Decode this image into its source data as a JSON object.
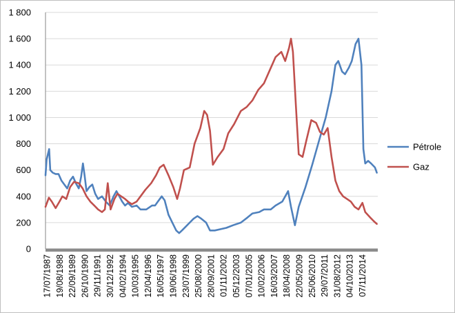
{
  "chart_data": {
    "type": "line",
    "title": "",
    "xlabel": "",
    "ylabel": "",
    "ylim": [
      0,
      1800
    ],
    "yticks": [
      0,
      200,
      400,
      600,
      800,
      1000,
      1200,
      1400,
      1600,
      1800
    ],
    "ytick_labels": [
      "0",
      "200",
      "400",
      "600",
      "800",
      "1 000",
      "1 200",
      "1 400",
      "1 600",
      "1 800"
    ],
    "xlim": [
      "17/07/1987",
      "31/03/2016"
    ],
    "xtick_labels": [
      "17/07/1987",
      "19/08/1988",
      "22/09/1989",
      "26/10/1990",
      "29/11/1991",
      "30/12/1992",
      "04/02/1994",
      "10/03/1995",
      "12/04/1996",
      "16/05/1997",
      "19/06/1998",
      "23/07/1999",
      "25/08/2000",
      "28/09/2001",
      "01/11/2002",
      "05/12/2003",
      "07/01/2005",
      "10/02/2006",
      "16/03/2007",
      "18/04/2008",
      "22/05/2009",
      "25/06/2010",
      "29/07/2011",
      "31/08/2012",
      "04/10/2013",
      "07/11/2014"
    ],
    "grid": "horizontal",
    "legend_position": "right",
    "series": [
      {
        "name": "Pétrole",
        "color": "#4f81bd",
        "points": [
          [
            "1987-07-17",
            560
          ],
          [
            "1987-08-20",
            680
          ],
          [
            "1987-10-10",
            730
          ],
          [
            "1987-11-10",
            760
          ],
          [
            "1987-12-15",
            600
          ],
          [
            "1988-03-01",
            580
          ],
          [
            "1988-06-01",
            570
          ],
          [
            "1988-09-01",
            570
          ],
          [
            "1988-12-01",
            520
          ],
          [
            "1989-03-01",
            490
          ],
          [
            "1989-06-01",
            460
          ],
          [
            "1989-09-01",
            520
          ],
          [
            "1989-12-01",
            550
          ],
          [
            "1990-03-01",
            500
          ],
          [
            "1990-06-01",
            460
          ],
          [
            "1990-08-15",
            550
          ],
          [
            "1990-10-10",
            650
          ],
          [
            "1990-12-01",
            560
          ],
          [
            "1991-02-01",
            440
          ],
          [
            "1991-05-01",
            470
          ],
          [
            "1991-08-01",
            490
          ],
          [
            "1991-11-01",
            420
          ],
          [
            "1992-02-01",
            380
          ],
          [
            "1992-06-01",
            400
          ],
          [
            "1992-10-01",
            360
          ],
          [
            "1993-02-01",
            330
          ],
          [
            "1993-06-01",
            400
          ],
          [
            "1993-09-01",
            440
          ],
          [
            "1993-12-01",
            400
          ],
          [
            "1994-03-01",
            360
          ],
          [
            "1994-06-01",
            330
          ],
          [
            "1994-09-01",
            350
          ],
          [
            "1995-01-01",
            320
          ],
          [
            "1995-06-01",
            330
          ],
          [
            "1995-10-01",
            300
          ],
          [
            "1996-04-01",
            300
          ],
          [
            "1996-10-01",
            330
          ],
          [
            "1997-01-01",
            330
          ],
          [
            "1997-04-01",
            360
          ],
          [
            "1997-08-01",
            400
          ],
          [
            "1997-11-01",
            370
          ],
          [
            "1998-03-01",
            260
          ],
          [
            "1998-07-01",
            200
          ],
          [
            "1998-11-01",
            140
          ],
          [
            "1999-02-01",
            120
          ],
          [
            "1999-05-01",
            140
          ],
          [
            "1999-09-01",
            170
          ],
          [
            "2000-01-01",
            200
          ],
          [
            "2000-05-01",
            230
          ],
          [
            "2000-09-01",
            250
          ],
          [
            "2001-01-01",
            230
          ],
          [
            "2001-06-01",
            200
          ],
          [
            "2001-10-01",
            140
          ],
          [
            "2002-03-01",
            140
          ],
          [
            "2002-09-01",
            150
          ],
          [
            "2003-03-01",
            160
          ],
          [
            "2003-10-01",
            180
          ],
          [
            "2004-06-01",
            200
          ],
          [
            "2005-01-01",
            240
          ],
          [
            "2005-06-01",
            270
          ],
          [
            "2006-01-01",
            280
          ],
          [
            "2006-06-01",
            300
          ],
          [
            "2007-01-01",
            300
          ],
          [
            "2007-06-01",
            330
          ],
          [
            "2008-01-01",
            360
          ],
          [
            "2008-07-01",
            440
          ],
          [
            "2008-10-01",
            320
          ],
          [
            "2009-02-01",
            180
          ],
          [
            "2009-06-01",
            320
          ],
          [
            "2010-01-01",
            470
          ],
          [
            "2010-08-01",
            640
          ],
          [
            "2011-03-01",
            820
          ],
          [
            "2011-10-01",
            1000
          ],
          [
            "2012-04-01",
            1200
          ],
          [
            "2012-08-01",
            1400
          ],
          [
            "2012-11-01",
            1430
          ],
          [
            "2013-03-01",
            1350
          ],
          [
            "2013-06-01",
            1330
          ],
          [
            "2013-10-01",
            1380
          ],
          [
            "2014-01-01",
            1430
          ],
          [
            "2014-05-01",
            1560
          ],
          [
            "2014-08-01",
            1600
          ],
          [
            "2014-11-01",
            1400
          ],
          [
            "2015-01-01",
            760
          ],
          [
            "2015-03-01",
            650
          ],
          [
            "2015-06-01",
            670
          ],
          [
            "2015-09-01",
            650
          ],
          [
            "2016-01-01",
            620
          ],
          [
            "2016-03-01",
            580
          ]
        ]
      },
      {
        "name": "Gaz",
        "color": "#c0504d",
        "points": [
          [
            "1987-07-17",
            320
          ],
          [
            "1987-11-01",
            390
          ],
          [
            "1988-02-01",
            360
          ],
          [
            "1988-06-01",
            310
          ],
          [
            "1988-10-01",
            360
          ],
          [
            "1989-01-01",
            400
          ],
          [
            "1989-05-01",
            380
          ],
          [
            "1989-09-01",
            470
          ],
          [
            "1990-01-01",
            510
          ],
          [
            "1990-06-01",
            500
          ],
          [
            "1990-10-01",
            460
          ],
          [
            "1991-02-01",
            400
          ],
          [
            "1991-06-01",
            360
          ],
          [
            "1991-10-01",
            330
          ],
          [
            "1992-02-01",
            300
          ],
          [
            "1992-06-01",
            280
          ],
          [
            "1992-09-01",
            300
          ],
          [
            "1992-12-01",
            500
          ],
          [
            "1993-03-01",
            300
          ],
          [
            "1993-07-01",
            380
          ],
          [
            "1993-10-01",
            420
          ],
          [
            "1994-02-01",
            400
          ],
          [
            "1994-06-01",
            380
          ],
          [
            "1994-09-01",
            360
          ],
          [
            "1995-01-01",
            340
          ],
          [
            "1995-06-01",
            360
          ],
          [
            "1995-10-01",
            400
          ],
          [
            "1996-03-01",
            450
          ],
          [
            "1996-09-01",
            500
          ],
          [
            "1997-02-01",
            560
          ],
          [
            "1997-06-01",
            620
          ],
          [
            "1997-10-01",
            640
          ],
          [
            "1998-03-01",
            560
          ],
          [
            "1998-08-01",
            470
          ],
          [
            "1998-12-01",
            380
          ],
          [
            "1999-03-01",
            460
          ],
          [
            "1999-07-01",
            600
          ],
          [
            "2000-01-01",
            620
          ],
          [
            "2000-06-01",
            800
          ],
          [
            "2000-12-01",
            920
          ],
          [
            "2001-04-01",
            1050
          ],
          [
            "2001-07-01",
            1020
          ],
          [
            "2001-10-01",
            900
          ],
          [
            "2002-01-01",
            640
          ],
          [
            "2002-06-01",
            700
          ],
          [
            "2002-12-01",
            760
          ],
          [
            "2003-05-01",
            880
          ],
          [
            "2003-11-01",
            950
          ],
          [
            "2004-06-01",
            1050
          ],
          [
            "2004-12-01",
            1080
          ],
          [
            "2005-06-01",
            1130
          ],
          [
            "2005-12-01",
            1210
          ],
          [
            "2006-06-01",
            1260
          ],
          [
            "2006-12-01",
            1360
          ],
          [
            "2007-06-01",
            1460
          ],
          [
            "2007-12-01",
            1500
          ],
          [
            "2008-04-01",
            1430
          ],
          [
            "2008-08-01",
            1530
          ],
          [
            "2008-10-01",
            1600
          ],
          [
            "2008-12-01",
            1500
          ],
          [
            "2009-03-01",
            1100
          ],
          [
            "2009-06-01",
            720
          ],
          [
            "2009-10-01",
            700
          ],
          [
            "2010-02-01",
            830
          ],
          [
            "2010-07-01",
            980
          ],
          [
            "2010-12-01",
            960
          ],
          [
            "2011-04-01",
            890
          ],
          [
            "2011-08-01",
            870
          ],
          [
            "2011-12-01",
            920
          ],
          [
            "2012-04-01",
            700
          ],
          [
            "2012-08-01",
            520
          ],
          [
            "2012-12-01",
            440
          ],
          [
            "2013-04-01",
            400
          ],
          [
            "2013-08-01",
            380
          ],
          [
            "2013-12-01",
            360
          ],
          [
            "2014-04-01",
            320
          ],
          [
            "2014-08-01",
            300
          ],
          [
            "2014-12-01",
            350
          ],
          [
            "2015-03-01",
            280
          ],
          [
            "2015-08-01",
            240
          ],
          [
            "2015-12-01",
            210
          ],
          [
            "2016-03-01",
            190
          ]
        ]
      }
    ]
  }
}
